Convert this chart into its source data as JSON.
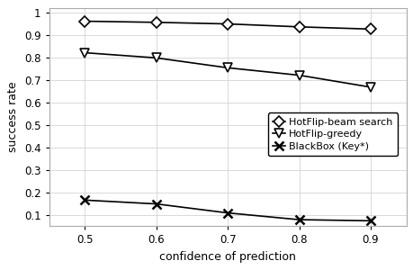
{
  "x": [
    0.5,
    0.6,
    0.7,
    0.8,
    0.9
  ],
  "hotflip_beam": [
    0.96,
    0.955,
    0.948,
    0.935,
    0.925
  ],
  "hotflip_greedy": [
    0.82,
    0.797,
    0.753,
    0.72,
    0.667
  ],
  "blackbox": [
    0.165,
    0.148,
    0.108,
    0.078,
    0.073
  ],
  "xlabel": "confidence of prediction",
  "ylabel": "success rate",
  "xlim": [
    0.45,
    0.95
  ],
  "ylim": [
    0.05,
    1.02
  ],
  "xticks": [
    0.5,
    0.6,
    0.7,
    0.8,
    0.9
  ],
  "yticks": [
    0.1,
    0.2,
    0.3,
    0.4,
    0.5,
    0.6,
    0.7,
    0.8,
    0.9,
    1.0
  ],
  "ytick_labels": [
    "0.1",
    "0.2",
    "0.3",
    "0.4",
    "0.5",
    "0.6",
    "0.7",
    "0.8",
    "0.9",
    "1"
  ],
  "legend_labels": [
    "HotFlip-beam search",
    "HotFlip-greedy",
    "BlackBox (Key*)"
  ],
  "line_color": "#000000",
  "grid_color": "#d3d3d3",
  "spine_color": "#aaaaaa",
  "background_color": "#ffffff"
}
